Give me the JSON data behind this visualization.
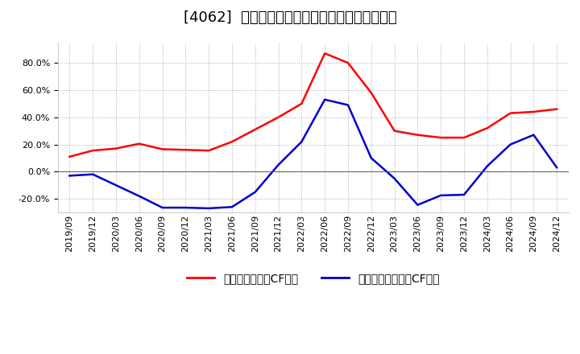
{
  "title": "[4062]  有利子負債キャッシュフロー比率の推移",
  "x_labels": [
    "2019/09",
    "2019/12",
    "2020/03",
    "2020/06",
    "2020/09",
    "2020/12",
    "2021/03",
    "2021/06",
    "2021/09",
    "2021/12",
    "2022/03",
    "2022/06",
    "2022/09",
    "2022/12",
    "2023/03",
    "2023/06",
    "2023/09",
    "2023/12",
    "2024/03",
    "2024/06",
    "2024/09",
    "2024/12"
  ],
  "red_values": [
    0.11,
    0.155,
    0.17,
    0.205,
    0.165,
    0.16,
    0.155,
    0.22,
    0.31,
    0.4,
    0.5,
    0.87,
    0.8,
    0.58,
    0.3,
    0.27,
    0.25,
    0.25,
    0.32,
    0.43,
    0.44,
    0.46
  ],
  "blue_values": [
    -0.03,
    -0.02,
    -0.1,
    -0.18,
    -0.265,
    -0.265,
    -0.27,
    -0.26,
    -0.15,
    0.05,
    0.22,
    0.53,
    0.49,
    0.1,
    -0.05,
    -0.245,
    -0.175,
    -0.17,
    0.04,
    0.2,
    0.27,
    0.03
  ],
  "red_color": "#ff0000",
  "blue_color": "#0000cc",
  "bg_color": "#ffffff",
  "plot_bg_color": "#ffffff",
  "grid_color": "#aaaaaa",
  "legend_red": "有利子負債営業CF比率",
  "legend_blue": "有利子負債フリーCF比率",
  "ylim": [
    -0.3,
    0.95
  ],
  "yticks": [
    -0.2,
    0.0,
    0.2,
    0.4,
    0.6,
    0.8
  ],
  "title_fontsize": 13,
  "tick_fontsize": 8,
  "legend_fontsize": 10
}
